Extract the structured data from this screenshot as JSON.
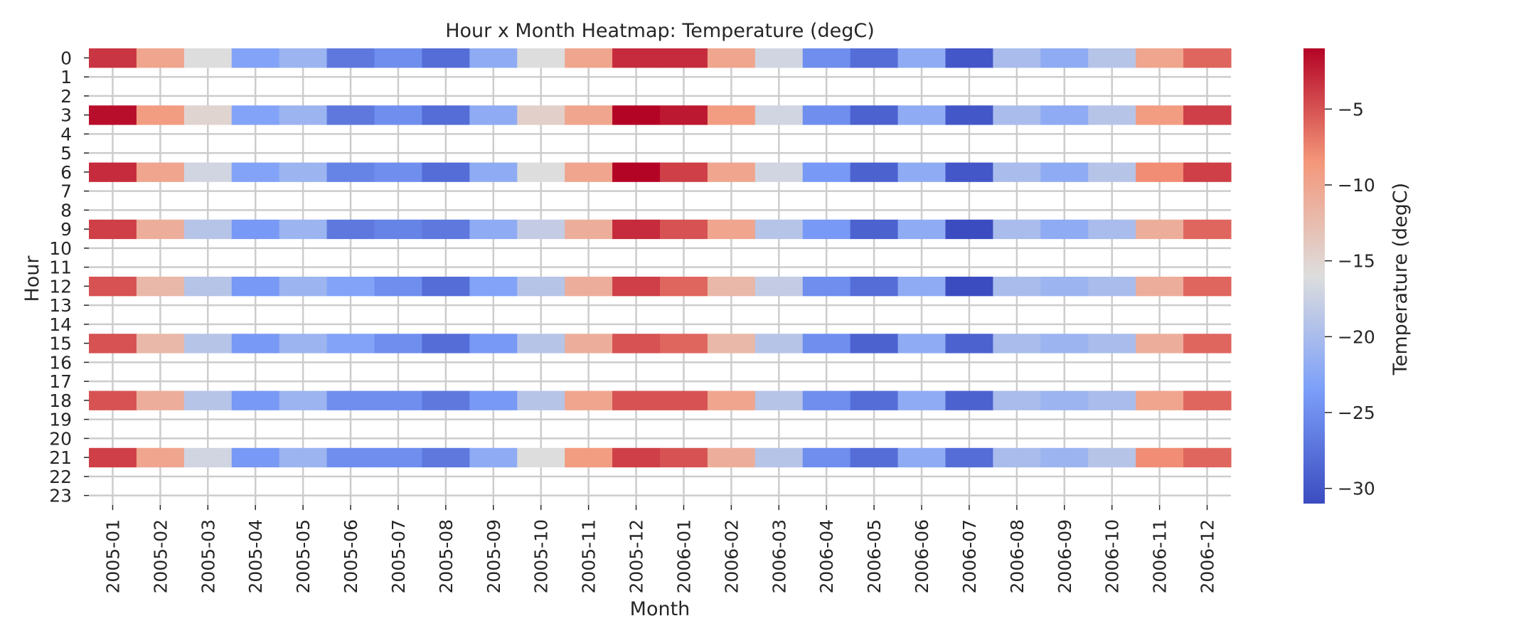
{
  "chart_data": {
    "type": "heatmap",
    "title": "Hour x Month Heatmap: Temperature (degC)",
    "xlabel": "Month",
    "ylabel": "Hour",
    "colorbar_label": "Temperature (degC)",
    "colormap": "coolwarm",
    "vmin": -31,
    "vmax": -1,
    "colorbar_ticks": [
      -5,
      -10,
      -15,
      -20,
      -25,
      -30
    ],
    "colorbar_tick_labels": [
      "−5",
      "−10",
      "−15",
      "−20",
      "−25",
      "−30"
    ],
    "grid": true,
    "x": [
      "2005-01",
      "2005-02",
      "2005-03",
      "2005-04",
      "2005-05",
      "2005-06",
      "2005-07",
      "2005-08",
      "2005-09",
      "2005-10",
      "2005-11",
      "2005-12",
      "2006-01",
      "2006-02",
      "2006-03",
      "2006-04",
      "2006-05",
      "2006-06",
      "2006-07",
      "2006-08",
      "2006-09",
      "2006-10",
      "2006-11",
      "2006-12"
    ],
    "y": [
      "0",
      "1",
      "2",
      "3",
      "4",
      "5",
      "6",
      "7",
      "8",
      "9",
      "10",
      "11",
      "12",
      "13",
      "14",
      "15",
      "16",
      "17",
      "18",
      "19",
      "20",
      "21",
      "22",
      "23"
    ],
    "rows": [
      {
        "hour": "0",
        "values": [
          -3.5,
          -10,
          -16,
          -23,
          -21,
          -27,
          -25,
          -28,
          -22,
          -16,
          -10,
          -3,
          -3,
          -10,
          -17,
          -25,
          -28,
          -22,
          -30,
          -20,
          -22,
          -19,
          -10,
          -6
        ]
      },
      {
        "hour": "3",
        "values": [
          -1.5,
          -9,
          -15,
          -23,
          -21,
          -27,
          -25,
          -28,
          -22,
          -14.5,
          -10,
          -1,
          -2,
          -9,
          -17,
          -25,
          -29,
          -22,
          -30,
          -20,
          -22,
          -19,
          -9,
          -4
        ]
      },
      {
        "hour": "6",
        "values": [
          -3,
          -10,
          -17,
          -23,
          -21,
          -26,
          -25,
          -28,
          -22,
          -16,
          -10,
          -0.5,
          -4,
          -10,
          -17,
          -24,
          -29,
          -22,
          -30,
          -20,
          -22,
          -19,
          -8,
          -4
        ]
      },
      {
        "hour": "9",
        "values": [
          -4,
          -11,
          -19,
          -24,
          -21,
          -27,
          -26,
          -27,
          -22,
          -18,
          -11,
          -3,
          -5,
          -10,
          -19,
          -24,
          -29,
          -22,
          -31,
          -20,
          -22,
          -20,
          -11,
          -6
        ]
      },
      {
        "hour": "12",
        "values": [
          -5,
          -12,
          -19,
          -24,
          -21,
          -23,
          -25,
          -28,
          -23,
          -19,
          -11,
          -4,
          -6,
          -12,
          -18,
          -25,
          -28,
          -22,
          -31,
          -20,
          -21,
          -20,
          -11,
          -6
        ]
      },
      {
        "hour": "15",
        "values": [
          -5,
          -12,
          -19,
          -24,
          -21,
          -23,
          -25,
          -28,
          -24,
          -19,
          -11,
          -5,
          -6,
          -12,
          -19,
          -25,
          -29,
          -22,
          -29,
          -20,
          -21,
          -20,
          -11,
          -6
        ]
      },
      {
        "hour": "18",
        "values": [
          -5,
          -11,
          -19,
          -24,
          -21,
          -25,
          -25,
          -27,
          -24,
          -19,
          -10,
          -5,
          -5,
          -10,
          -19,
          -25,
          -28,
          -22,
          -29,
          -20,
          -21,
          -20,
          -10,
          -6
        ]
      },
      {
        "hour": "21",
        "values": [
          -4,
          -10,
          -17,
          -24,
          -21,
          -25,
          -25,
          -27,
          -22,
          -16,
          -9,
          -4,
          -5,
          -11,
          -19,
          -25,
          -28,
          -22,
          -28,
          -20,
          -21,
          -19,
          -8,
          -6
        ]
      }
    ]
  }
}
